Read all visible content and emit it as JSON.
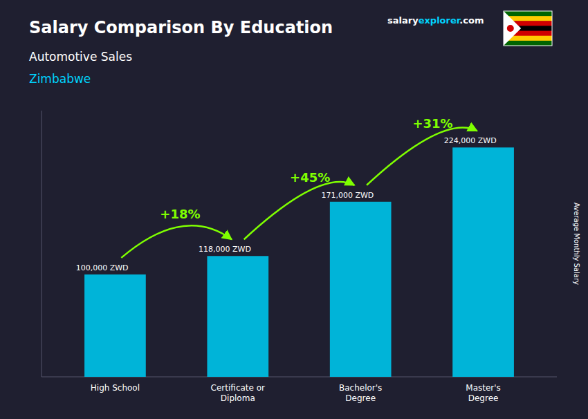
{
  "chart_data": {
    "type": "bar",
    "title": "Salary Comparison By Education",
    "subtitle": [
      "Automotive Sales",
      "Zimbabwe"
    ],
    "ylabel": "Average Monthly Salary",
    "brand": [
      "salary",
      "explorer",
      ".com"
    ],
    "categories": [
      "High School",
      "Certificate or\nDiploma",
      "Bachelor's\nDegree",
      "Master's\nDegree"
    ],
    "values": [
      100000,
      118000,
      171000,
      224000
    ],
    "value_labels": [
      "100,000 ZWD",
      "118,000 ZWD",
      "171,000 ZWD",
      "224,000 ZWD"
    ],
    "annotations": [
      "+18%",
      "+45%",
      "+31%"
    ],
    "color": "#00b4d8",
    "ylim": [
      0,
      260000
    ],
    "tick_labels": "x",
    "grid": false
  }
}
